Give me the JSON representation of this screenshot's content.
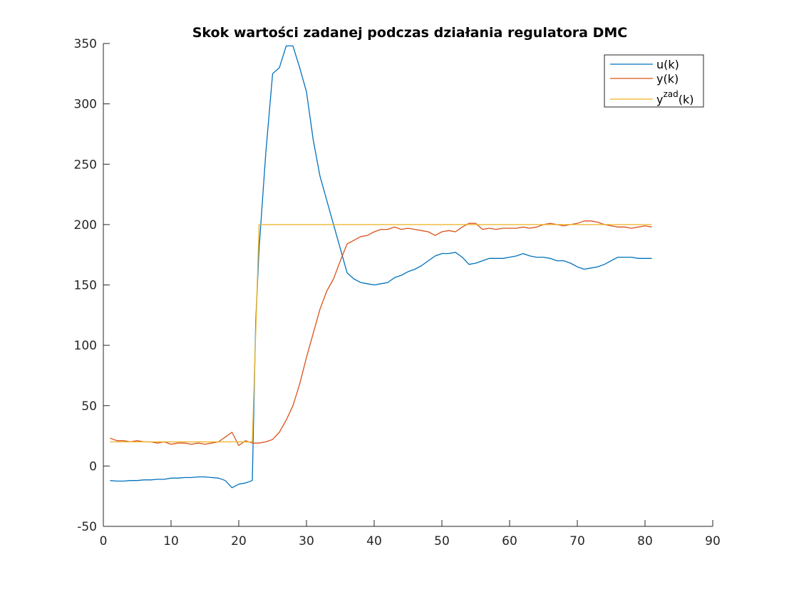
{
  "chart_data": {
    "type": "line",
    "title": "Skok wartości zadanej podczas działania regulatora DMC",
    "xlabel": "",
    "ylabel": "",
    "xlim": [
      0,
      90
    ],
    "ylim": [
      -50,
      350
    ],
    "xticks": [
      0,
      10,
      20,
      30,
      40,
      50,
      60,
      70,
      80,
      90
    ],
    "yticks": [
      -50,
      0,
      50,
      100,
      150,
      200,
      250,
      300,
      350
    ],
    "grid": false,
    "legend_position": "top-right",
    "series": [
      {
        "name": "u(k)",
        "label_main": "u(k)",
        "label_sup": "",
        "label_tail": "",
        "color": "#0072BD",
        "x": [
          1,
          2,
          3,
          4,
          5,
          6,
          7,
          8,
          9,
          10,
          11,
          12,
          13,
          14,
          15,
          16,
          17,
          18,
          19,
          20,
          21,
          22,
          22.5,
          23,
          24,
          25,
          26,
          27,
          28,
          29,
          30,
          31,
          32,
          33,
          34,
          35,
          36,
          37,
          38,
          39,
          40,
          41,
          42,
          43,
          44,
          45,
          46,
          47,
          48,
          49,
          50,
          51,
          52,
          53,
          54,
          55,
          56,
          57,
          58,
          59,
          60,
          61,
          62,
          63,
          64,
          65,
          66,
          67,
          68,
          69,
          70,
          71,
          72,
          73,
          74,
          75,
          76,
          77,
          78,
          79,
          80,
          81
        ],
        "y": [
          -12,
          -12.5,
          -12.5,
          -12,
          -12,
          -11.5,
          -11.5,
          -11,
          -11,
          -10,
          -10,
          -9.5,
          -9.5,
          -9,
          -9,
          -9.5,
          -10,
          -12,
          -18,
          -15,
          -14,
          -12,
          120,
          180,
          260,
          325,
          330,
          348,
          348,
          330,
          310,
          270,
          240,
          220,
          200,
          180,
          160,
          155,
          152,
          151,
          150,
          151,
          152,
          156,
          158,
          161,
          163,
          166,
          170,
          174,
          176,
          176,
          177,
          173,
          167,
          168,
          170,
          172,
          172,
          172,
          173,
          174,
          176,
          174,
          173,
          173,
          172,
          170,
          170,
          168,
          165,
          163,
          164,
          165,
          167,
          170,
          173,
          173,
          173,
          172,
          172,
          172
        ]
      },
      {
        "name": "y(k)",
        "label_main": "y(k)",
        "label_sup": "",
        "label_tail": "",
        "color": "#D95319",
        "x": [
          1,
          2,
          3,
          4,
          5,
          6,
          7,
          8,
          9,
          10,
          11,
          12,
          13,
          14,
          15,
          16,
          17,
          18,
          19,
          20,
          21,
          22,
          23,
          24,
          25,
          26,
          27,
          28,
          29,
          30,
          31,
          32,
          33,
          34,
          35,
          36,
          37,
          38,
          39,
          40,
          41,
          42,
          43,
          44,
          45,
          46,
          47,
          48,
          49,
          50,
          51,
          52,
          53,
          54,
          55,
          56,
          57,
          58,
          59,
          60,
          61,
          62,
          63,
          64,
          65,
          66,
          67,
          68,
          69,
          70,
          71,
          72,
          73,
          74,
          75,
          76,
          77,
          78,
          79,
          80,
          81
        ],
        "y": [
          23,
          21,
          21,
          20,
          21,
          20,
          20,
          19,
          20,
          18,
          19,
          19,
          18,
          19,
          18,
          19,
          20,
          24,
          28,
          17,
          21,
          19,
          19,
          20,
          22,
          28,
          38,
          50,
          68,
          90,
          110,
          130,
          145,
          155,
          170,
          184,
          187,
          190,
          191,
          194,
          196,
          196,
          198,
          196,
          197,
          196,
          195,
          194,
          191,
          194,
          195,
          194,
          198,
          201,
          201,
          196,
          197,
          196,
          197,
          197,
          197,
          198,
          197,
          198,
          200,
          201,
          200,
          199,
          200,
          201,
          203,
          203,
          202,
          200,
          199,
          198,
          198,
          197,
          198,
          199,
          198
        ]
      },
      {
        "name": "yzad(k)",
        "label_main": "y",
        "label_sup": "zad",
        "label_tail": "(k)",
        "color": "#EDB120",
        "x": [
          1,
          22,
          23,
          81
        ],
        "y": [
          20,
          20,
          200,
          200
        ]
      }
    ]
  }
}
